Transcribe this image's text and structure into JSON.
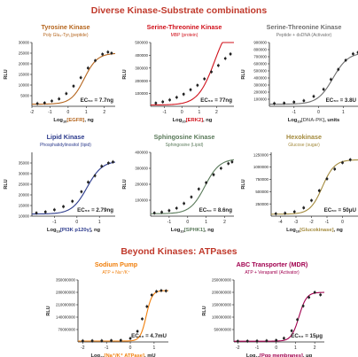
{
  "section_titles": {
    "top": "Diverse Kinase-Substrate combinations",
    "bottom": "Beyond Kinases: ATPases"
  },
  "colors": {
    "title": "#c0392b",
    "data_black": "#222222",
    "tyrosine": "#b5651d",
    "serine_red": "#d0101a",
    "serine_gray": "#6f6f6f",
    "lipid": "#2b3a8c",
    "sphingosine": "#5a7a5a",
    "hexokinase": "#a38a3c",
    "sodium": "#f07f0c",
    "abc": "#a1004f"
  },
  "chart_data": [
    {
      "type": "scatter",
      "title": "Tyrosine Kinase",
      "subtitle": "Poly Glu₄-Tyr₁(peptide)",
      "xlabel_prefix": "Log",
      "xlabel_sub": "10",
      "xlabel_highlight": "[EGFR]",
      "xlabel_suffix": ", ng",
      "ylabel": "RLU",
      "annotation": "EC₅₀ = 7.7ng",
      "color": "#b5651d",
      "xlim": [
        -2,
        2.6
      ],
      "ylim": [
        0,
        30000
      ],
      "xticks": [
        -2,
        -1,
        0,
        1,
        2
      ],
      "yticks": [
        5000,
        10000,
        15000,
        20000,
        25000,
        30000
      ],
      "ytick_labels": [
        "5000",
        "10000",
        "15000",
        "20000",
        "25000",
        "30000"
      ],
      "curve": {
        "bottom": 1000,
        "top": 25000,
        "logec50": 0.89,
        "hill": 1.2
      },
      "points": [
        [
          -1.7,
          1300
        ],
        [
          -1.3,
          1600
        ],
        [
          -0.9,
          2500
        ],
        [
          -0.5,
          3500
        ],
        [
          -0.1,
          6000
        ],
        [
          0.3,
          9500
        ],
        [
          0.7,
          13500
        ],
        [
          1.1,
          18000
        ],
        [
          1.5,
          21500
        ],
        [
          1.9,
          24500
        ],
        [
          2.2,
          25500
        ],
        [
          2.4,
          25000
        ]
      ]
    },
    {
      "type": "scatter",
      "title": "Serine-Threonine Kinase",
      "subtitle": "MBP (protein)",
      "xlabel_prefix": "Log",
      "xlabel_sub": "10",
      "xlabel_highlight": "[ERK2]",
      "xlabel_suffix": ", ng",
      "ylabel": "RLU",
      "annotation": "EC₅₀ = 77ng",
      "color": "#d0101a",
      "xlim": [
        -1.8,
        3.0
      ],
      "ylim": [
        0,
        500000
      ],
      "xticks": [
        -1,
        0,
        1,
        2
      ],
      "yticks": [
        100000,
        200000,
        300000,
        400000,
        500000
      ],
      "ytick_labels": [
        "100000",
        "200000",
        "300000",
        "400000",
        "500000"
      ],
      "curve": {
        "bottom": 10000,
        "top": 700000,
        "logec50": 1.89,
        "hill": 0.9
      },
      "points": [
        [
          -1.5,
          25000
        ],
        [
          -1.1,
          35000
        ],
        [
          -0.7,
          50000
        ],
        [
          -0.3,
          70000
        ],
        [
          0.1,
          95000
        ],
        [
          0.5,
          130000
        ],
        [
          0.9,
          165000
        ],
        [
          1.3,
          215000
        ],
        [
          1.7,
          270000
        ],
        [
          2.1,
          320000
        ],
        [
          2.5,
          375000
        ],
        [
          2.8,
          410000
        ]
      ]
    },
    {
      "type": "scatter",
      "title": "Serine-Threonine Kinase",
      "subtitle": "Peptide + dsDNA (Activator)",
      "xlabel_prefix": "Log",
      "xlabel_sub": "10",
      "xlabel_highlight": "[DNA-PK]",
      "xlabel_suffix": ", units",
      "ylabel": "RLU",
      "annotation": "EC₅₀ = 3.8U",
      "color": "#6f6f6f",
      "xlim": [
        -2,
        1.6
      ],
      "ylim": [
        0,
        900000
      ],
      "xticks": [
        -1,
        0,
        1
      ],
      "yticks": [
        100000,
        200000,
        300000,
        400000,
        500000,
        600000,
        700000,
        800000,
        900000
      ],
      "ytick_labels": [
        "100000",
        "200000",
        "300000",
        "400000",
        "500000",
        "600000",
        "700000",
        "800000",
        "900000"
      ],
      "curve": {
        "bottom": 30000,
        "top": 760000,
        "logec50": 0.58,
        "hill": 1.4
      },
      "points": [
        [
          -1.8,
          40000
        ],
        [
          -1.4,
          45000
        ],
        [
          -1.0,
          60000
        ],
        [
          -0.6,
          80000
        ],
        [
          -0.2,
          140000
        ],
        [
          0.2,
          240000
        ],
        [
          0.5,
          380000
        ],
        [
          0.8,
          520000
        ],
        [
          1.1,
          650000
        ],
        [
          1.4,
          740000
        ],
        [
          1.6,
          760000
        ]
      ]
    },
    {
      "type": "scatter",
      "title": "Lipid Kinase",
      "subtitle": "Phosphatidylinositol (lipid)",
      "xlabel_prefix": "Log",
      "xlabel_sub": "10",
      "xlabel_highlight": "[PI3K p120γ]",
      "xlabel_suffix": ", ng",
      "ylabel": "RLU",
      "annotation": "EC₅₀ = 2.79ng",
      "color": "#2b3a8c",
      "xlim": [
        -2,
        1.7
      ],
      "ylim": [
        10000,
        40000
      ],
      "xticks": [
        -1,
        0,
        1
      ],
      "yticks": [
        10000,
        15000,
        20000,
        25000,
        30000,
        35000
      ],
      "ytick_labels": [
        "10000",
        "15000",
        "20000",
        "25000",
        "30000",
        "35000"
      ],
      "curve": {
        "bottom": 11000,
        "top": 36000,
        "logec50": 0.45,
        "hill": 1.3
      },
      "points": [
        [
          -1.8,
          11500
        ],
        [
          -1.4,
          12000
        ],
        [
          -1.0,
          13000
        ],
        [
          -0.6,
          14500
        ],
        [
          -0.2,
          17000
        ],
        [
          0.2,
          21500
        ],
        [
          0.5,
          26000
        ],
        [
          0.8,
          29000
        ],
        [
          1.1,
          33500
        ],
        [
          1.4,
          35000
        ],
        [
          1.6,
          35500
        ]
      ]
    },
    {
      "type": "scatter",
      "title": "Sphingosine Kinase",
      "subtitle": "Sphingosine (Lipid)",
      "xlabel_prefix": "Log",
      "xlabel_sub": "10",
      "xlabel_highlight": "[SPHK1]",
      "xlabel_suffix": ", ng",
      "ylabel": "RLU",
      "annotation": "EC₅₀ = 8.6ng",
      "color": "#5a7a5a",
      "xlim": [
        -2,
        2.5
      ],
      "ylim": [
        0,
        400000
      ],
      "xticks": [
        -1,
        0,
        1,
        2
      ],
      "yticks": [
        100000,
        200000,
        300000,
        400000
      ],
      "ytick_labels": [
        "100000",
        "200000",
        "300000",
        "400000"
      ],
      "curve": {
        "bottom": 15000,
        "top": 360000,
        "logec50": 0.93,
        "hill": 1.1
      },
      "points": [
        [
          -1.8,
          20000
        ],
        [
          -1.4,
          25000
        ],
        [
          -1.0,
          35000
        ],
        [
          -0.6,
          50000
        ],
        [
          -0.2,
          80000
        ],
        [
          0.2,
          120000
        ],
        [
          0.6,
          170000
        ],
        [
          1.0,
          210000
        ],
        [
          1.4,
          260000
        ],
        [
          1.8,
          300000
        ],
        [
          2.2,
          330000
        ],
        [
          2.4,
          340000
        ]
      ]
    },
    {
      "type": "scatter",
      "title": "Hexokinase",
      "subtitle": "Glucose (sugar)",
      "xlabel_prefix": "Log",
      "xlabel_sub": "10",
      "xlabel_highlight": "[Glucokinase]",
      "xlabel_suffix": ", ng",
      "ylabel": "RLU",
      "annotation": "EC₅₀ = 50μU",
      "color": "#a38a3c",
      "xlim": [
        -4.6,
        1.0
      ],
      "ylim": [
        0,
        1300000
      ],
      "xticks": [
        -4,
        -3,
        -2,
        -1,
        0
      ],
      "yticks": [
        250000,
        500000,
        750000,
        1000000,
        1250000
      ],
      "ytick_labels": [
        "250000",
        "500000",
        "750000",
        "1000000",
        "1250000"
      ],
      "curve": {
        "bottom": 40000,
        "top": 1150000,
        "logec50": -1.3,
        "hill": 1.1
      },
      "points": [
        [
          -4.3,
          50000
        ],
        [
          -3.7,
          60000
        ],
        [
          -3.1,
          90000
        ],
        [
          -2.5,
          170000
        ],
        [
          -2.0,
          320000
        ],
        [
          -1.5,
          520000
        ],
        [
          -1.0,
          760000
        ],
        [
          -0.5,
          960000
        ],
        [
          0.0,
          1090000
        ],
        [
          0.5,
          1150000
        ]
      ]
    },
    {
      "type": "scatter",
      "title": "Sodium Pump",
      "subtitle": "ATP + Na⁺/K⁺",
      "xlabel_prefix": "Log",
      "xlabel_sub": "10",
      "xlabel_highlight": "[Na⁺/K⁺ ATPase]",
      "xlabel_suffix": ", mU",
      "ylabel": "RLU",
      "annotation": "EC₅₀ = 4.7mU",
      "color": "#f07f0c",
      "xlim": [
        -2.2,
        1.6
      ],
      "ylim": [
        0,
        350000000
      ],
      "xticks": [
        -2,
        -1,
        0,
        1
      ],
      "yticks": [
        70000000,
        140000000,
        210000000,
        280000000,
        350000000
      ],
      "ytick_labels": [
        "70000000",
        "140000000",
        "210000000",
        "280000000",
        "350000000"
      ],
      "curve": {
        "bottom": 5000000,
        "top": 290000000,
        "logec50": 0.67,
        "hill": 3.5
      },
      "points": [
        [
          -2.0,
          6000000
        ],
        [
          -1.6,
          6500000
        ],
        [
          -1.2,
          7000000
        ],
        [
          -0.8,
          8000000
        ],
        [
          -0.4,
          9000000
        ],
        [
          0.0,
          20000000
        ],
        [
          0.3,
          60000000
        ],
        [
          0.5,
          130000000
        ],
        [
          0.7,
          200000000
        ],
        [
          0.9,
          265000000
        ],
        [
          1.1,
          285000000
        ],
        [
          1.3,
          290000000
        ],
        [
          1.5,
          288000000
        ]
      ]
    },
    {
      "type": "scatter",
      "title": "ABC Transporter (MDR)",
      "subtitle": "ATP + Verapamil (Activator)",
      "xlabel_prefix": "Log",
      "xlabel_sub": "10",
      "xlabel_highlight": "[Pgp membranes]",
      "xlabel_suffix": ", μg",
      "ylabel": "RLU",
      "annotation": "EC₅₀ = 15μg",
      "color": "#a1004f",
      "xlim": [
        -2.2,
        2.5
      ],
      "ylim": [
        0,
        250000000
      ],
      "xticks": [
        -2,
        -1,
        0,
        1,
        2
      ],
      "yticks": [
        50000000,
        100000000,
        150000000,
        200000000,
        250000000
      ],
      "ytick_labels": [
        "50000000",
        "100000000",
        "150000000",
        "200000000",
        "250000000"
      ],
      "curve": {
        "bottom": 3000000,
        "top": 200000000,
        "logec50": 1.18,
        "hill": 2.2
      },
      "points": [
        [
          -2.0,
          3000000
        ],
        [
          -1.5,
          3500000
        ],
        [
          -1.0,
          4000000
        ],
        [
          -0.5,
          5000000
        ],
        [
          0.0,
          6500000
        ],
        [
          0.4,
          15000000
        ],
        [
          0.8,
          45000000
        ],
        [
          1.1,
          90000000
        ],
        [
          1.4,
          145000000
        ],
        [
          1.7,
          180000000
        ],
        [
          2.0,
          200000000
        ],
        [
          2.3,
          190000000
        ]
      ]
    }
  ]
}
